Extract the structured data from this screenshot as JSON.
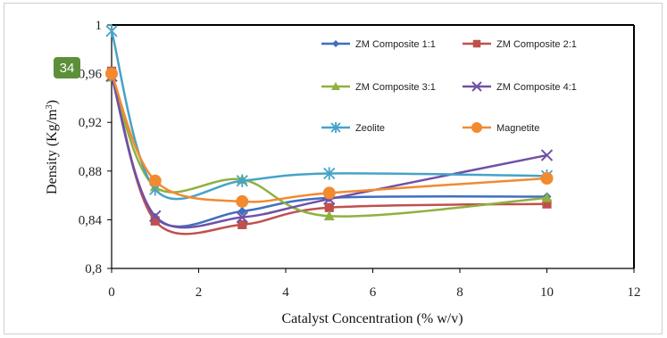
{
  "badge": {
    "text": "34"
  },
  "chart_data": {
    "type": "line",
    "title": "",
    "xlabel": "Catalyst Concentration (% w/v)",
    "ylabel": "Density (Kg/m³)",
    "xlim": [
      0,
      12
    ],
    "ylim": [
      0.8,
      1.0
    ],
    "xticks": [
      0,
      2,
      4,
      6,
      8,
      10,
      12
    ],
    "yticks": [
      0.8,
      0.84,
      0.88,
      0.92,
      0.96,
      1.0
    ],
    "xtick_labels": [
      "0",
      "2",
      "4",
      "6",
      "8",
      "10",
      "12"
    ],
    "ytick_labels": [
      "0,8",
      "0,84",
      "0,88",
      "0,92",
      "0,96",
      "1"
    ],
    "grid": false,
    "legend_position": "upper-right inside plot",
    "series": [
      {
        "name": "ZM Composite 1:1",
        "color": "#3f6fbf",
        "marker": "diamond",
        "x": [
          0,
          1,
          3,
          5,
          10
        ],
        "y": [
          0.958,
          0.842,
          0.847,
          0.858,
          0.859
        ]
      },
      {
        "name": "ZM Composite 2:1",
        "color": "#c0504d",
        "marker": "square",
        "x": [
          0,
          1,
          3,
          5,
          10
        ],
        "y": [
          0.962,
          0.839,
          0.836,
          0.85,
          0.853
        ]
      },
      {
        "name": "ZM Composite 3:1",
        "color": "#8fb13f",
        "marker": "triangle",
        "x": [
          0,
          1,
          3,
          5,
          10
        ],
        "y": [
          0.957,
          0.867,
          0.873,
          0.843,
          0.858
        ]
      },
      {
        "name": "ZM Composite 4:1",
        "color": "#7150a6",
        "marker": "x",
        "x": [
          0,
          1,
          3,
          5,
          10
        ],
        "y": [
          0.958,
          0.843,
          0.842,
          0.857,
          0.893
        ]
      },
      {
        "name": "Zeolite",
        "color": "#45a3c9",
        "marker": "star",
        "x": [
          0,
          1,
          3,
          5,
          10
        ],
        "y": [
          0.995,
          0.865,
          0.872,
          0.878,
          0.876
        ]
      },
      {
        "name": "Magnetite",
        "color": "#f28a30",
        "marker": "circle",
        "x": [
          0,
          1,
          3,
          5,
          10
        ],
        "y": [
          0.96,
          0.872,
          0.855,
          0.862,
          0.874
        ]
      }
    ]
  }
}
